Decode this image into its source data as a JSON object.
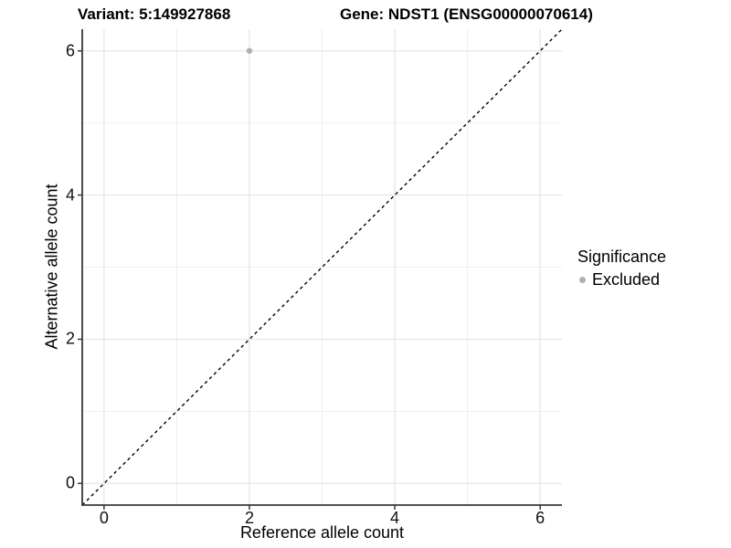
{
  "titles": {
    "variant": "Variant: 5:149927868",
    "gene": "Gene: NDST1 (ENSG00000070614)"
  },
  "axes": {
    "x": {
      "label": "Reference allele count",
      "tick_labels": [
        "0",
        "2",
        "4",
        "6"
      ]
    },
    "y": {
      "label": "Alternative allele count",
      "tick_labels": [
        "0",
        "2",
        "4",
        "6"
      ]
    }
  },
  "legend": {
    "title": "Significance",
    "items": [
      {
        "label": "Excluded",
        "color": "#b0b0b0"
      }
    ]
  },
  "chart_data": {
    "type": "scatter",
    "title": "Variant: 5:149927868 / Gene: NDST1 (ENSG00000070614)",
    "xlabel": "Reference allele count",
    "ylabel": "Alternative allele count",
    "xlim": [
      -0.3,
      6.3
    ],
    "ylim": [
      -0.3,
      6.3
    ],
    "major_ticks": [
      0,
      2,
      4,
      6
    ],
    "minor_gridlines": [
      1,
      3,
      5
    ],
    "grid": "on",
    "legend_position": "right",
    "series": [
      {
        "name": "Excluded",
        "color": "#b0b0b0",
        "points": [
          {
            "x": 2,
            "y": 6
          }
        ]
      }
    ],
    "reference_line": {
      "equation": "y = x",
      "style": "dashed",
      "color": "#000000"
    }
  },
  "colors": {
    "background": "#ffffff",
    "grid_major": "#e4e4e4",
    "grid_minor": "#efefef",
    "axis_line": "#383838",
    "point": "#b0b0b0",
    "text": "#000000"
  }
}
